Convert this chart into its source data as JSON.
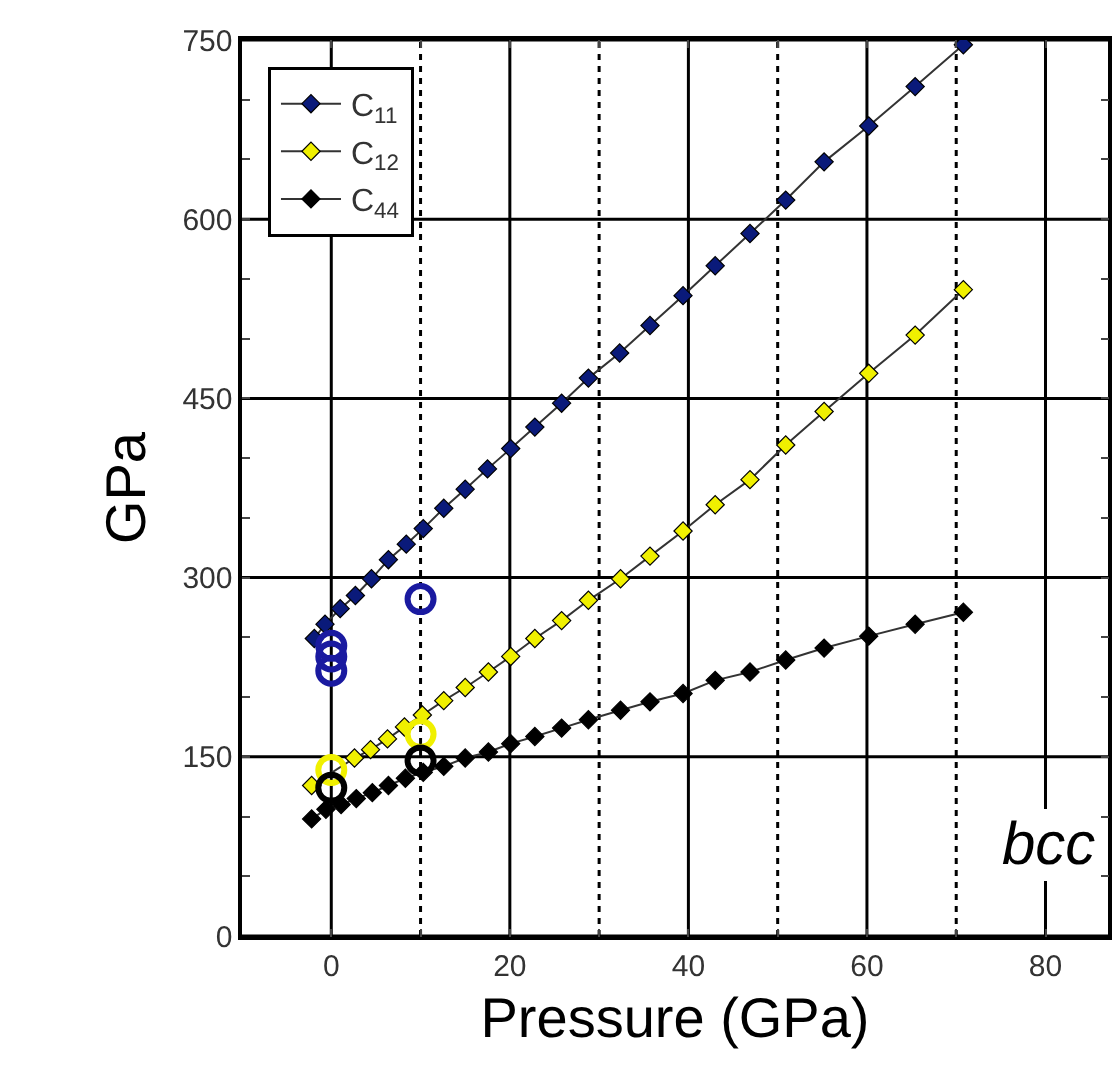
{
  "chart_data": {
    "type": "line",
    "xlabel": "Pressure (GPa)",
    "ylabel": "GPa",
    "xlim": [
      -10,
      87
    ],
    "ylim": [
      0,
      750
    ],
    "xticks": [
      0,
      {
        "value": 10,
        "label": null
      },
      20,
      {
        "value": 30,
        "label": null
      },
      40,
      {
        "value": 50,
        "label": null
      },
      60,
      {
        "value": 70,
        "label": null
      },
      80
    ],
    "yticks": [
      0,
      {
        "value": 50,
        "label": null
      },
      {
        "value": 100,
        "label": null
      },
      150,
      {
        "value": 200,
        "label": null
      },
      {
        "value": 250,
        "label": null
      },
      300,
      {
        "value": 350,
        "label": null
      },
      {
        "value": 400,
        "label": null
      },
      450,
      {
        "value": 500,
        "label": null
      },
      {
        "value": 550,
        "label": null
      },
      600,
      {
        "value": 650,
        "label": null
      },
      {
        "value": 700,
        "label": null
      },
      750
    ],
    "grid": true,
    "legend": "top left",
    "line_style": "solid",
    "annotations": [
      "bcc"
    ],
    "series": [
      {
        "name": "C$_{11}$",
        "color": "#0a1a7a",
        "marker": "diamond",
        "x": [
          -1.9,
          -0.7,
          1.0,
          2.7,
          4.5,
          6.4,
          8.4,
          10.3,
          12.6,
          15.0,
          17.5,
          20.1,
          22.8,
          25.8,
          28.8,
          32.3,
          35.7,
          39.4,
          43.0,
          46.9,
          50.9,
          55.2,
          60.2,
          65.4,
          70.8
        ],
        "values": [
          249,
          261,
          274,
          285,
          299,
          315,
          328,
          341,
          358,
          374,
          391,
          408,
          426,
          446,
          467,
          488,
          511,
          536,
          561,
          588,
          616,
          648,
          678,
          711,
          746
        ]
      },
      {
        "name": "C$_{12}$",
        "color": "#f0f000",
        "marker": "diamond",
        "x": [
          -2.2,
          2.6,
          4.4,
          6.3,
          8.2,
          10.2,
          12.6,
          15.0,
          17.6,
          20.1,
          22.8,
          25.8,
          28.8,
          32.4,
          35.7,
          39.4,
          43.0,
          46.9,
          50.9,
          55.2,
          60.2,
          65.4,
          70.8
        ],
        "values": [
          126,
          149,
          156,
          165,
          175,
          185,
          197,
          208,
          221,
          234,
          249,
          264,
          281,
          299,
          318,
          339,
          361,
          382,
          411,
          439,
          471,
          503,
          541
        ]
      },
      {
        "name": "C$_{44}$",
        "color": "#000000",
        "marker": "diamond",
        "x": [
          -2.2,
          -0.6,
          1.1,
          2.8,
          4.6,
          6.4,
          8.3,
          10.3,
          12.6,
          15.0,
          17.6,
          20.1,
          22.8,
          25.8,
          28.8,
          32.4,
          35.7,
          39.4,
          43.0,
          46.9,
          50.9,
          55.2,
          60.2,
          65.4,
          70.8
        ],
        "values": [
          98,
          106,
          110,
          115,
          120,
          126,
          132,
          137,
          142,
          149,
          154,
          161,
          167,
          174,
          181,
          189,
          196,
          203,
          214,
          221,
          231,
          241,
          251,
          261,
          271
        ]
      },
      {
        "type": "scatter",
        "color": "#1a1aa0",
        "marker": "circle",
        "x": [
          0,
          0,
          0,
          10
        ],
        "values": [
          243,
          234,
          222,
          282
        ]
      },
      {
        "type": "scatter",
        "color": "#f0f000",
        "marker": "circle",
        "x": [
          0,
          10
        ],
        "values": [
          139,
          169
        ]
      },
      {
        "type": "scatter",
        "color": "#000000",
        "marker": "circle",
        "x": [
          0,
          10
        ],
        "values": [
          124,
          147
        ]
      }
    ]
  }
}
